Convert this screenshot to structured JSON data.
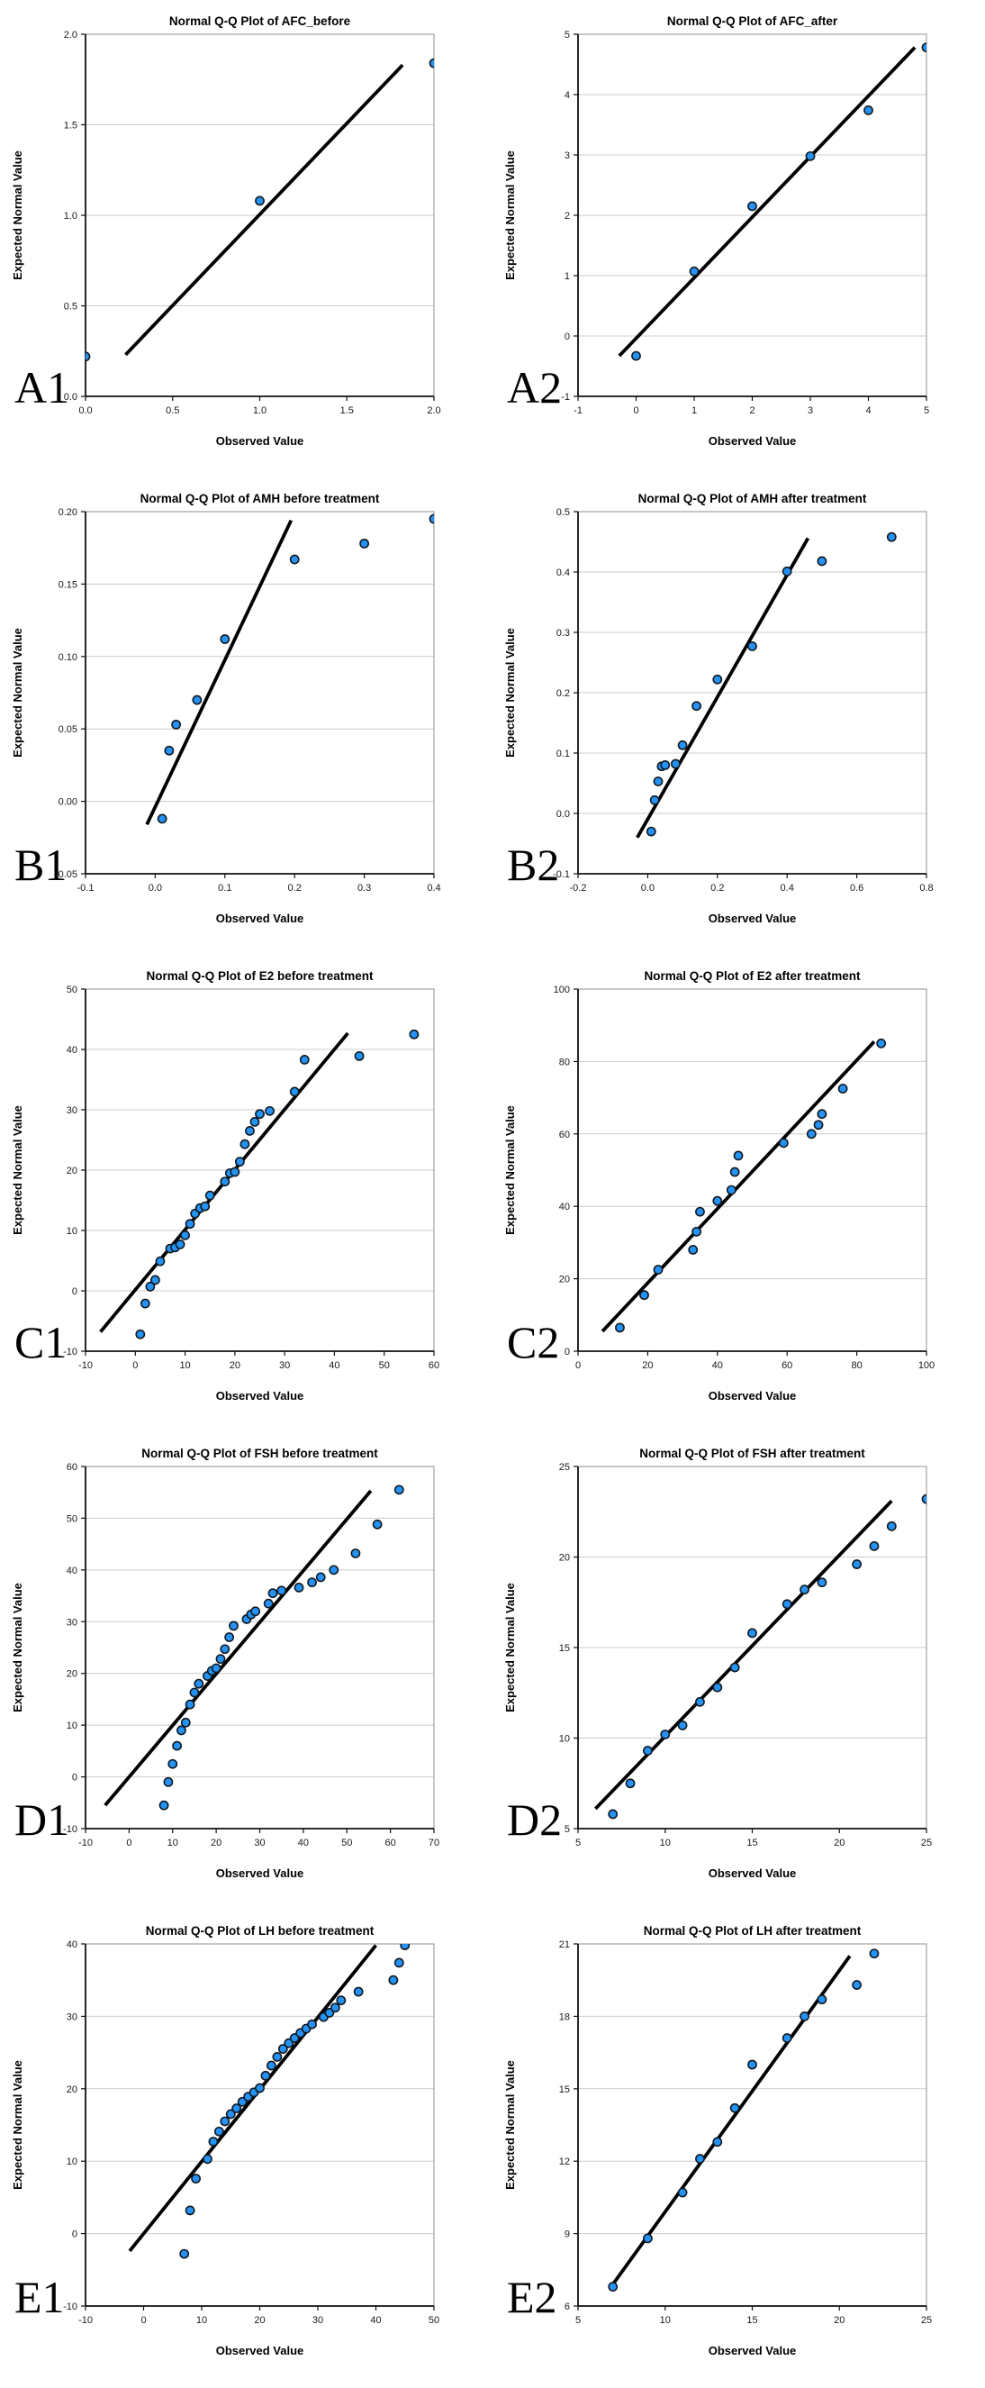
{
  "figure": {
    "xlabel": "Observed Value",
    "ylabel": "Expected Normal Value",
    "panel_labels": [
      "A1",
      "A2",
      "B1",
      "B2",
      "C1",
      "C2",
      "D1",
      "D2",
      "E1",
      "E2"
    ]
  },
  "style": {
    "point_fill": "#2493F5",
    "point_stroke": "#101820",
    "trend_color": "#000000",
    "grid_color": "#cccccc",
    "frame_color": "#8f8f8f",
    "axis_color": "#111111",
    "background": "#ffffff"
  },
  "chart_data": [
    {
      "id": "A1",
      "type": "scatter",
      "panel_label": "A1",
      "title": "Normal Q-Q Plot of AFC_before",
      "xlabel": "Observed Value",
      "ylabel": "Expected Normal Value",
      "xlim": [
        0.0,
        2.0
      ],
      "ylim": [
        0.0,
        2.0
      ],
      "xticks": [
        "0.0",
        "0.5",
        "1.0",
        "1.5",
        "2.0"
      ],
      "yticks": [
        "0.0",
        "0.5",
        "1.0",
        "1.5",
        "2.0"
      ],
      "grid": "horizontal",
      "legend": false,
      "points": [
        [
          0.0,
          0.22
        ],
        [
          1.0,
          1.08
        ],
        [
          2.0,
          1.84
        ]
      ],
      "trend_line": {
        "x1": 0.23,
        "y1": 0.23,
        "x2": 1.82,
        "y2": 1.83
      }
    },
    {
      "id": "A2",
      "type": "scatter",
      "panel_label": "A2",
      "title": "Normal Q-Q Plot of AFC_after",
      "xlabel": "Observed Value",
      "ylabel": "Expected Normal Value",
      "xlim": [
        -1,
        5
      ],
      "ylim": [
        -1,
        5
      ],
      "xticks": [
        "-1",
        "0",
        "1",
        "2",
        "3",
        "4",
        "5"
      ],
      "yticks": [
        "-1",
        "0",
        "1",
        "2",
        "3",
        "4",
        "5"
      ],
      "grid": "horizontal",
      "legend": false,
      "points": [
        [
          0,
          -0.33
        ],
        [
          1,
          1.07
        ],
        [
          2,
          2.15
        ],
        [
          3,
          2.98
        ],
        [
          4,
          3.74
        ],
        [
          5,
          4.78
        ]
      ],
      "trend_line": {
        "x1": -0.29,
        "y1": -0.33,
        "x2": 4.8,
        "y2": 4.78
      }
    },
    {
      "id": "B1",
      "type": "scatter",
      "panel_label": "B1",
      "title": "Normal Q-Q Plot of AMH before treatment",
      "xlabel": "Observed Value",
      "ylabel": "Expected Normal Value",
      "xlim": [
        -0.1,
        0.4
      ],
      "ylim": [
        -0.05,
        0.2
      ],
      "xticks": [
        "-0.1",
        "0.0",
        "0.1",
        "0.2",
        "0.3",
        "0.4"
      ],
      "yticks": [
        "-0.05",
        "0.00",
        "0.05",
        "0.10",
        "0.15",
        "0.20"
      ],
      "grid": "horizontal",
      "legend": false,
      "points": [
        [
          0.01,
          -0.012
        ],
        [
          0.02,
          0.035
        ],
        [
          0.03,
          0.053
        ],
        [
          0.06,
          0.07
        ],
        [
          0.1,
          0.112
        ],
        [
          0.2,
          0.167
        ],
        [
          0.3,
          0.178
        ],
        [
          0.4,
          0.195
        ]
      ],
      "trend_line": {
        "x1": -0.012,
        "y1": -0.016,
        "x2": 0.195,
        "y2": 0.194
      }
    },
    {
      "id": "B2",
      "type": "scatter",
      "panel_label": "B2",
      "title": "Normal Q-Q Plot of AMH after treatment",
      "xlabel": "Observed Value",
      "ylabel": "Expected Normal Value",
      "xlim": [
        -0.2,
        0.8
      ],
      "ylim": [
        -0.1,
        0.5
      ],
      "xticks": [
        "-0.2",
        "0.0",
        "0.2",
        "0.4",
        "0.6",
        "0.8"
      ],
      "yticks": [
        "-0.1",
        "0.0",
        "0.1",
        "0.2",
        "0.3",
        "0.4",
        "0.5"
      ],
      "grid": "horizontal",
      "legend": false,
      "points": [
        [
          0.01,
          -0.03
        ],
        [
          0.02,
          0.022
        ],
        [
          0.03,
          0.053
        ],
        [
          0.04,
          0.078
        ],
        [
          0.05,
          0.08
        ],
        [
          0.08,
          0.082
        ],
        [
          0.1,
          0.113
        ],
        [
          0.14,
          0.178
        ],
        [
          0.2,
          0.222
        ],
        [
          0.3,
          0.277
        ],
        [
          0.4,
          0.401
        ],
        [
          0.5,
          0.418
        ],
        [
          0.7,
          0.458
        ]
      ],
      "trend_line": {
        "x1": -0.03,
        "y1": -0.04,
        "x2": 0.46,
        "y2": 0.456
      }
    },
    {
      "id": "C1",
      "type": "scatter",
      "panel_label": "C1",
      "title": "Normal Q-Q Plot of E2 before treatment",
      "xlabel": "Observed Value",
      "ylabel": "Expected Normal Value",
      "xlim": [
        -10,
        60
      ],
      "ylim": [
        -10,
        50
      ],
      "xticks": [
        "-10",
        "0",
        "10",
        "20",
        "30",
        "40",
        "50",
        "60"
      ],
      "yticks": [
        "-10",
        "0",
        "10",
        "20",
        "30",
        "40",
        "50"
      ],
      "grid": "horizontal",
      "legend": false,
      "points": [
        [
          1,
          -7.2
        ],
        [
          2,
          -2.1
        ],
        [
          3,
          0.7
        ],
        [
          4,
          1.8
        ],
        [
          5,
          4.9
        ],
        [
          7,
          7.0
        ],
        [
          8,
          7.2
        ],
        [
          9,
          7.7
        ],
        [
          10,
          9.2
        ],
        [
          11,
          11.1
        ],
        [
          12,
          12.8
        ],
        [
          13,
          13.7
        ],
        [
          14,
          14.0
        ],
        [
          15,
          15.8
        ],
        [
          18,
          18.1
        ],
        [
          19,
          19.5
        ],
        [
          20,
          19.7
        ],
        [
          21,
          21.4
        ],
        [
          22,
          24.3
        ],
        [
          23,
          26.5
        ],
        [
          24,
          28.0
        ],
        [
          25,
          29.3
        ],
        [
          27,
          29.8
        ],
        [
          32,
          33.0
        ],
        [
          34,
          38.3
        ],
        [
          45,
          38.9
        ],
        [
          56,
          42.5
        ]
      ],
      "trend_line": {
        "x1": -7,
        "y1": -6.8,
        "x2": 42.7,
        "y2": 42.7
      }
    },
    {
      "id": "C2",
      "type": "scatter",
      "panel_label": "C2",
      "title": "Normal Q-Q Plot of E2 after treatment",
      "xlabel": "Observed Value",
      "ylabel": "Expected Normal Value",
      "xlim": [
        0,
        100
      ],
      "ylim": [
        0,
        100
      ],
      "xticks": [
        "0",
        "20",
        "40",
        "60",
        "80",
        "100"
      ],
      "yticks": [
        "0",
        "20",
        "40",
        "60",
        "80",
        "100"
      ],
      "grid": "horizontal",
      "legend": false,
      "points": [
        [
          12,
          6.5
        ],
        [
          19,
          15.5
        ],
        [
          23,
          22.5
        ],
        [
          33,
          28.0
        ],
        [
          34,
          33.0
        ],
        [
          35,
          38.5
        ],
        [
          40,
          41.5
        ],
        [
          44,
          44.5
        ],
        [
          45,
          49.5
        ],
        [
          46,
          54.0
        ],
        [
          59,
          57.5
        ],
        [
          67,
          60.0
        ],
        [
          69,
          62.5
        ],
        [
          70,
          65.5
        ],
        [
          76,
          72.5
        ],
        [
          87,
          85.0
        ]
      ],
      "trend_line": {
        "x1": 7,
        "y1": 5.5,
        "x2": 85,
        "y2": 85.5
      }
    },
    {
      "id": "D1",
      "type": "scatter",
      "panel_label": "D1",
      "title": "Normal Q-Q Plot of FSH before treatment",
      "xlabel": "Observed Value",
      "ylabel": "Expected Normal Value",
      "xlim": [
        -10,
        70
      ],
      "ylim": [
        -10,
        60
      ],
      "xticks": [
        "-10",
        "0",
        "10",
        "20",
        "30",
        "40",
        "50",
        "60",
        "70"
      ],
      "yticks": [
        "-10",
        "0",
        "10",
        "20",
        "30",
        "40",
        "50",
        "60"
      ],
      "grid": "horizontal",
      "legend": false,
      "points": [
        [
          8,
          -5.5
        ],
        [
          9,
          -1.0
        ],
        [
          10,
          2.5
        ],
        [
          11,
          6.0
        ],
        [
          12,
          9.0
        ],
        [
          13,
          10.5
        ],
        [
          14,
          14.0
        ],
        [
          15,
          16.3
        ],
        [
          16,
          18.0
        ],
        [
          18,
          19.5
        ],
        [
          19,
          20.5
        ],
        [
          20,
          21.0
        ],
        [
          21,
          22.8
        ],
        [
          22,
          24.7
        ],
        [
          23,
          27.0
        ],
        [
          24,
          29.2
        ],
        [
          27,
          30.5
        ],
        [
          28,
          31.4
        ],
        [
          29,
          32.0
        ],
        [
          32,
          33.5
        ],
        [
          33,
          35.5
        ],
        [
          35,
          36.0
        ],
        [
          39,
          36.6
        ],
        [
          42,
          37.6
        ],
        [
          44,
          38.6
        ],
        [
          47,
          40.0
        ],
        [
          52,
          43.2
        ],
        [
          57,
          48.8
        ],
        [
          62,
          55.5
        ]
      ],
      "trend_line": {
        "x1": -5.5,
        "y1": -5.5,
        "x2": 55.5,
        "y2": 55.3
      }
    },
    {
      "id": "D2",
      "type": "scatter",
      "panel_label": "D2",
      "title": "Normal Q-Q Plot of FSH after treatment",
      "xlabel": "Observed Value",
      "ylabel": "Expected Normal Value",
      "xlim": [
        5,
        25
      ],
      "ylim": [
        5,
        25
      ],
      "xticks": [
        "5",
        "10",
        "15",
        "20",
        "25"
      ],
      "yticks": [
        "5",
        "10",
        "15",
        "20",
        "25"
      ],
      "grid": "horizontal",
      "legend": false,
      "points": [
        [
          7,
          5.8
        ],
        [
          8,
          7.5
        ],
        [
          9,
          9.3
        ],
        [
          10,
          10.2
        ],
        [
          11,
          10.7
        ],
        [
          12,
          12.0
        ],
        [
          13,
          12.8
        ],
        [
          14,
          13.9
        ],
        [
          15,
          15.8
        ],
        [
          17,
          17.4
        ],
        [
          18,
          18.2
        ],
        [
          19,
          18.6
        ],
        [
          21,
          19.6
        ],
        [
          22,
          20.6
        ],
        [
          23,
          21.7
        ],
        [
          25,
          23.2
        ]
      ],
      "trend_line": {
        "x1": 6,
        "y1": 6.1,
        "x2": 23,
        "y2": 23.1
      }
    },
    {
      "id": "E1",
      "type": "scatter",
      "panel_label": "E1",
      "title": "Normal Q-Q Plot of LH before treatment",
      "xlabel": "Observed Value",
      "ylabel": "Expected Normal Value",
      "xlim": [
        -10,
        50
      ],
      "ylim": [
        -10,
        40
      ],
      "xticks": [
        "-10",
        "0",
        "10",
        "20",
        "30",
        "40",
        "50"
      ],
      "yticks": [
        "-10",
        "0",
        "10",
        "20",
        "30",
        "40"
      ],
      "grid": "horizontal",
      "legend": false,
      "points": [
        [
          7,
          -2.8
        ],
        [
          8,
          3.2
        ],
        [
          9,
          7.6
        ],
        [
          11,
          10.3
        ],
        [
          12,
          12.7
        ],
        [
          13,
          14.1
        ],
        [
          14,
          15.5
        ],
        [
          15,
          16.5
        ],
        [
          16,
          17.3
        ],
        [
          17,
          18.2
        ],
        [
          18,
          18.9
        ],
        [
          19,
          19.5
        ],
        [
          20,
          20.1
        ],
        [
          21,
          21.8
        ],
        [
          22,
          23.2
        ],
        [
          23,
          24.4
        ],
        [
          24,
          25.5
        ],
        [
          25,
          26.3
        ],
        [
          26,
          27.0
        ],
        [
          27,
          27.7
        ],
        [
          28,
          28.3
        ],
        [
          29,
          28.9
        ],
        [
          31,
          29.9
        ],
        [
          32,
          30.5
        ],
        [
          33,
          31.2
        ],
        [
          34,
          32.2
        ],
        [
          37,
          33.4
        ],
        [
          43,
          35.0
        ],
        [
          44,
          37.4
        ],
        [
          45,
          39.8
        ]
      ],
      "trend_line": {
        "x1": -2.4,
        "y1": -2.4,
        "x2": 40,
        "y2": 39.8
      }
    },
    {
      "id": "E2",
      "type": "scatter",
      "panel_label": "E2",
      "title": "Normal Q-Q Plot of LH after treatment",
      "xlabel": "Observed Value",
      "ylabel": "Expected Normal Value",
      "xlim": [
        5,
        25
      ],
      "ylim": [
        6,
        21
      ],
      "xticks": [
        "5",
        "10",
        "15",
        "20",
        "25"
      ],
      "yticks": [
        "6",
        "9",
        "12",
        "15",
        "18",
        "21"
      ],
      "grid": "horizontal",
      "legend": false,
      "points": [
        [
          7,
          6.8
        ],
        [
          9,
          8.8
        ],
        [
          11,
          10.7
        ],
        [
          12,
          12.1
        ],
        [
          13,
          12.8
        ],
        [
          14,
          14.2
        ],
        [
          15,
          16.0
        ],
        [
          17,
          17.1
        ],
        [
          18,
          18.0
        ],
        [
          19,
          18.7
        ],
        [
          21,
          19.3
        ],
        [
          22,
          20.6
        ]
      ],
      "trend_line": {
        "x1": 7,
        "y1": 6.9,
        "x2": 20.6,
        "y2": 20.5
      }
    }
  ]
}
